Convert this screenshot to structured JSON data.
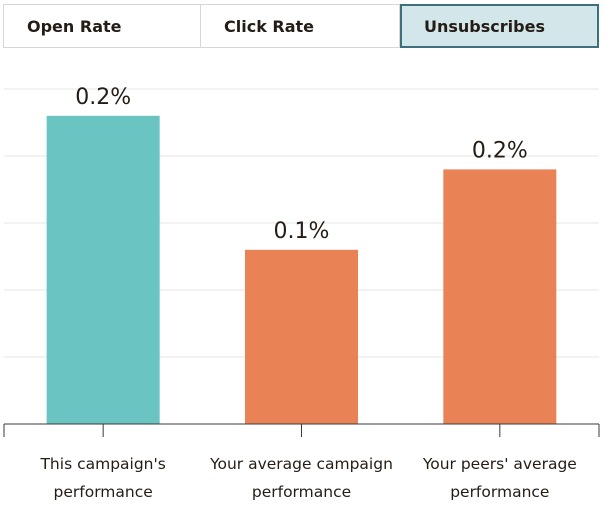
{
  "tabs": [
    {
      "label": "Open Rate",
      "active": false
    },
    {
      "label": "Click Rate",
      "active": false
    },
    {
      "label": "Unsubscribes",
      "active": true
    }
  ],
  "chart_data": {
    "type": "bar",
    "categories": [
      [
        "This campaign's",
        "performance"
      ],
      [
        "Your average campaign",
        "performance"
      ],
      [
        "Your peers' average",
        "performance"
      ]
    ],
    "values": [
      0.23,
      0.13,
      0.19
    ],
    "value_labels": [
      "0.2%",
      "0.1%",
      "0.2%"
    ],
    "colors": [
      "#6ac4c2",
      "#e98355",
      "#e98355"
    ],
    "ylim": [
      0,
      0.25
    ],
    "grid": true
  }
}
